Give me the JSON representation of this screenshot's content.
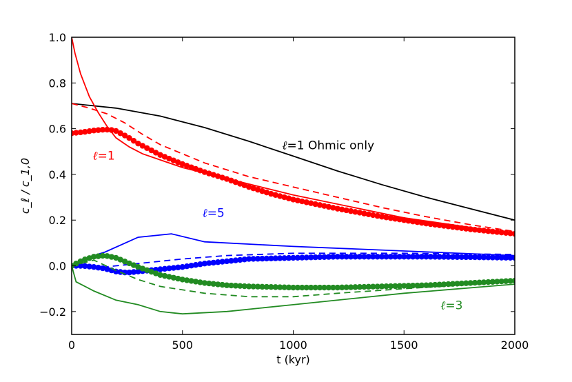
{
  "chart_data": {
    "type": "line",
    "xlabel": "t (kyr)",
    "ylabel": "c_ℓ / c_1,0",
    "xlim": [
      0,
      2000
    ],
    "ylim": [
      -0.3,
      1.0
    ],
    "xticks": [
      0,
      500,
      1000,
      1500,
      2000
    ],
    "yticks": [
      -0.2,
      0.0,
      0.2,
      0.4,
      0.6,
      0.8,
      1.0
    ],
    "xtick_labels": [
      "0",
      "500",
      "1000",
      "1500",
      "2000"
    ],
    "ytick_labels": [
      "−0.2",
      "0.0",
      "0.2",
      "0.4",
      "0.6",
      "0.8",
      "1.0"
    ],
    "grid": false,
    "series": [
      {
        "name": "ℓ=1 Ohmic only",
        "color": "#000000",
        "style": "solid",
        "x": [
          0,
          200,
          400,
          600,
          800,
          1000,
          1200,
          1400,
          1600,
          1800,
          2000
        ],
        "y": [
          0.71,
          0.69,
          0.655,
          0.605,
          0.545,
          0.48,
          0.415,
          0.355,
          0.3,
          0.25,
          0.2
        ]
      },
      {
        "name": "ℓ=1",
        "color": "#ff0000",
        "style": "solid",
        "x": [
          0,
          15,
          40,
          80,
          120,
          160,
          200,
          260,
          320,
          500,
          1000,
          1500,
          2000
        ],
        "y": [
          1.0,
          0.93,
          0.84,
          0.74,
          0.67,
          0.61,
          0.56,
          0.52,
          0.49,
          0.43,
          0.31,
          0.21,
          0.14
        ]
      },
      {
        "color": "#ff0000",
        "style": "dashed",
        "x": [
          0,
          80,
          160,
          240,
          320,
          400,
          600,
          800,
          1000,
          1200,
          1400,
          1600,
          1800,
          2000
        ],
        "y": [
          0.71,
          0.69,
          0.665,
          0.625,
          0.575,
          0.53,
          0.45,
          0.39,
          0.345,
          0.3,
          0.255,
          0.215,
          0.18,
          0.15
        ]
      },
      {
        "color": "#ff0000",
        "style": "dots",
        "x": [
          0,
          50,
          100,
          150,
          175,
          200,
          250,
          300,
          400,
          500,
          600,
          700,
          800,
          900,
          1000,
          1200,
          1400,
          1600,
          1800,
          2000
        ],
        "y": [
          0.58,
          0.585,
          0.592,
          0.596,
          0.595,
          0.59,
          0.565,
          0.535,
          0.485,
          0.445,
          0.41,
          0.38,
          0.345,
          0.315,
          0.29,
          0.25,
          0.215,
          0.185,
          0.16,
          0.14
        ]
      },
      {
        "name": "ℓ=5",
        "color": "#0000ff",
        "style": "solid",
        "x": [
          0,
          50,
          150,
          300,
          450,
          600,
          1000,
          1500,
          2000
        ],
        "y": [
          0.0,
          0.03,
          0.06,
          0.125,
          0.14,
          0.105,
          0.085,
          0.065,
          0.045
        ]
      },
      {
        "color": "#0000ff",
        "style": "dashed",
        "x": [
          0,
          100,
          200,
          300,
          400,
          500,
          700,
          1000,
          1500,
          2000
        ],
        "y": [
          0.0,
          -0.01,
          0.0,
          0.01,
          0.02,
          0.03,
          0.045,
          0.055,
          0.055,
          0.05
        ]
      },
      {
        "color": "#0000ff",
        "style": "dots",
        "x": [
          0,
          50,
          100,
          150,
          200,
          250,
          300,
          400,
          500,
          600,
          700,
          800,
          1000,
          1200,
          1400,
          1600,
          1800,
          2000
        ],
        "y": [
          0.0,
          0.0,
          -0.005,
          -0.012,
          -0.025,
          -0.03,
          -0.025,
          -0.015,
          -0.005,
          0.01,
          0.02,
          0.03,
          0.035,
          0.04,
          0.04,
          0.04,
          0.038,
          0.035
        ]
      },
      {
        "name": "ℓ=3",
        "color": "#228b22",
        "style": "solid",
        "x": [
          0,
          20,
          100,
          200,
          300,
          400,
          500,
          700,
          1000,
          1500,
          2000
        ],
        "y": [
          0.0,
          -0.07,
          -0.11,
          -0.15,
          -0.17,
          -0.2,
          -0.21,
          -0.2,
          -0.17,
          -0.12,
          -0.08
        ]
      },
      {
        "color": "#228b22",
        "style": "dashed",
        "x": [
          0,
          100,
          200,
          300,
          400,
          600,
          800,
          1000,
          1200,
          1500,
          2000
        ],
        "y": [
          0.0,
          0.025,
          -0.02,
          -0.06,
          -0.09,
          -0.12,
          -0.135,
          -0.135,
          -0.12,
          -0.1,
          -0.07
        ]
      },
      {
        "color": "#228b22",
        "style": "dots",
        "x": [
          0,
          50,
          100,
          150,
          200,
          250,
          300,
          400,
          500,
          600,
          700,
          800,
          1000,
          1200,
          1400,
          1600,
          1800,
          2000
        ],
        "y": [
          0.0,
          0.025,
          0.04,
          0.045,
          0.035,
          0.015,
          -0.005,
          -0.04,
          -0.06,
          -0.075,
          -0.085,
          -0.09,
          -0.095,
          -0.095,
          -0.09,
          -0.085,
          -0.075,
          -0.065
        ]
      }
    ],
    "annotations": [
      {
        "math": "ℓ",
        "text": "=1 Ohmic only",
        "x": 950,
        "y": 0.51,
        "color": "#000000"
      },
      {
        "math": "ℓ",
        "text": "=1",
        "x": 95,
        "y": 0.465,
        "color": "#ff0000"
      },
      {
        "math": "ℓ",
        "text": "=5",
        "x": 590,
        "y": 0.215,
        "color": "#0000ff"
      },
      {
        "math": "ℓ",
        "text": "=3",
        "x": 1665,
        "y": -0.19,
        "color": "#228b22"
      }
    ]
  }
}
